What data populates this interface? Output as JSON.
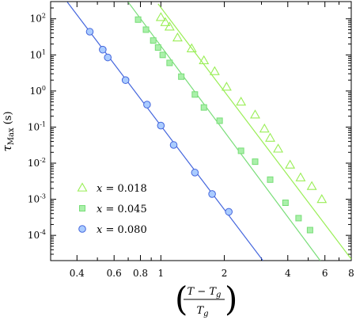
{
  "chart_data": {
    "type": "scatter",
    "title": "",
    "xlabel_numerator": "T − T",
    "xlabel_numerator_sub": "g",
    "xlabel_denominator": "T",
    "xlabel_denominator_sub": "g",
    "ylabel_main": "τ",
    "ylabel_sub": "Max",
    "ylabel_unit": " (s)",
    "x_scale": "log",
    "y_scale": "log",
    "xlim": [
      0.3,
      8
    ],
    "ylim": [
      2e-05,
      300
    ],
    "x_ticks": [
      0.4,
      0.6,
      0.8,
      1,
      2,
      4,
      6,
      8
    ],
    "x_tick_labels": [
      "0.4",
      "0.6",
      "0.8",
      "1",
      "2",
      "4",
      "6",
      "8"
    ],
    "y_ticks": [
      100,
      10,
      1,
      0.1,
      0.01,
      0.001,
      0.0001
    ],
    "y_tick_labels": [
      {
        "base": "10",
        "exp": "2"
      },
      {
        "base": "10",
        "exp": "1"
      },
      {
        "base": "10",
        "exp": "0"
      },
      {
        "base": "10",
        "exp": "-1"
      },
      {
        "base": "10",
        "exp": "-2"
      },
      {
        "base": "10",
        "exp": "-3"
      },
      {
        "base": "10",
        "exp": "-4"
      }
    ],
    "legend_position": "bottom-left",
    "series": [
      {
        "name": "x = 0.018",
        "legend_var": "x",
        "legend_value": " = 0.018",
        "marker": "triangle",
        "color": "#99ee55",
        "points": [
          [
            1.0,
            110
          ],
          [
            1.05,
            80
          ],
          [
            1.1,
            60
          ],
          [
            1.2,
            30
          ],
          [
            1.4,
            15
          ],
          [
            1.6,
            7
          ],
          [
            1.8,
            3.5
          ],
          [
            2.05,
            1.3
          ],
          [
            2.4,
            0.5
          ],
          [
            2.8,
            0.22
          ],
          [
            3.1,
            0.09
          ],
          [
            3.3,
            0.05
          ],
          [
            3.6,
            0.025
          ],
          [
            4.1,
            0.009
          ],
          [
            4.6,
            0.004
          ],
          [
            5.2,
            0.0023
          ],
          [
            5.8,
            0.001
          ]
        ],
        "fit_line": [
          [
            0.97,
            260
          ],
          [
            8.0,
            2.2e-05
          ]
        ]
      },
      {
        "name": "x = 0.045",
        "legend_var": "x",
        "legend_value": " = 0.045",
        "marker": "square",
        "color": "#77dd77",
        "points": [
          [
            0.78,
            95
          ],
          [
            0.85,
            50
          ],
          [
            0.92,
            25
          ],
          [
            0.97,
            16
          ],
          [
            1.02,
            10
          ],
          [
            1.1,
            6
          ],
          [
            1.25,
            2.5
          ],
          [
            1.45,
            0.8
          ],
          [
            1.6,
            0.35
          ],
          [
            1.9,
            0.15
          ],
          [
            2.4,
            0.022
          ],
          [
            2.8,
            0.011
          ],
          [
            3.3,
            0.0035
          ],
          [
            3.9,
            0.0008
          ],
          [
            4.5,
            0.0003
          ],
          [
            5.1,
            0.00014
          ]
        ],
        "fit_line": [
          [
            0.7,
            290
          ],
          [
            5.7,
            2e-05
          ]
        ]
      },
      {
        "name": "x = 0.080",
        "legend_var": "x",
        "legend_value": " = 0.080",
        "marker": "circle",
        "color": "#4466dd",
        "points": [
          [
            0.46,
            44
          ],
          [
            0.53,
            14
          ],
          [
            0.56,
            8.5
          ],
          [
            0.68,
            2.0
          ],
          [
            0.86,
            0.42
          ],
          [
            1.0,
            0.11
          ],
          [
            1.15,
            0.032
          ],
          [
            1.45,
            0.0055
          ],
          [
            1.75,
            0.0014
          ],
          [
            2.1,
            0.00045
          ]
        ],
        "fit_line": [
          [
            0.36,
            290
          ],
          [
            3.05,
            2e-05
          ]
        ]
      }
    ]
  }
}
